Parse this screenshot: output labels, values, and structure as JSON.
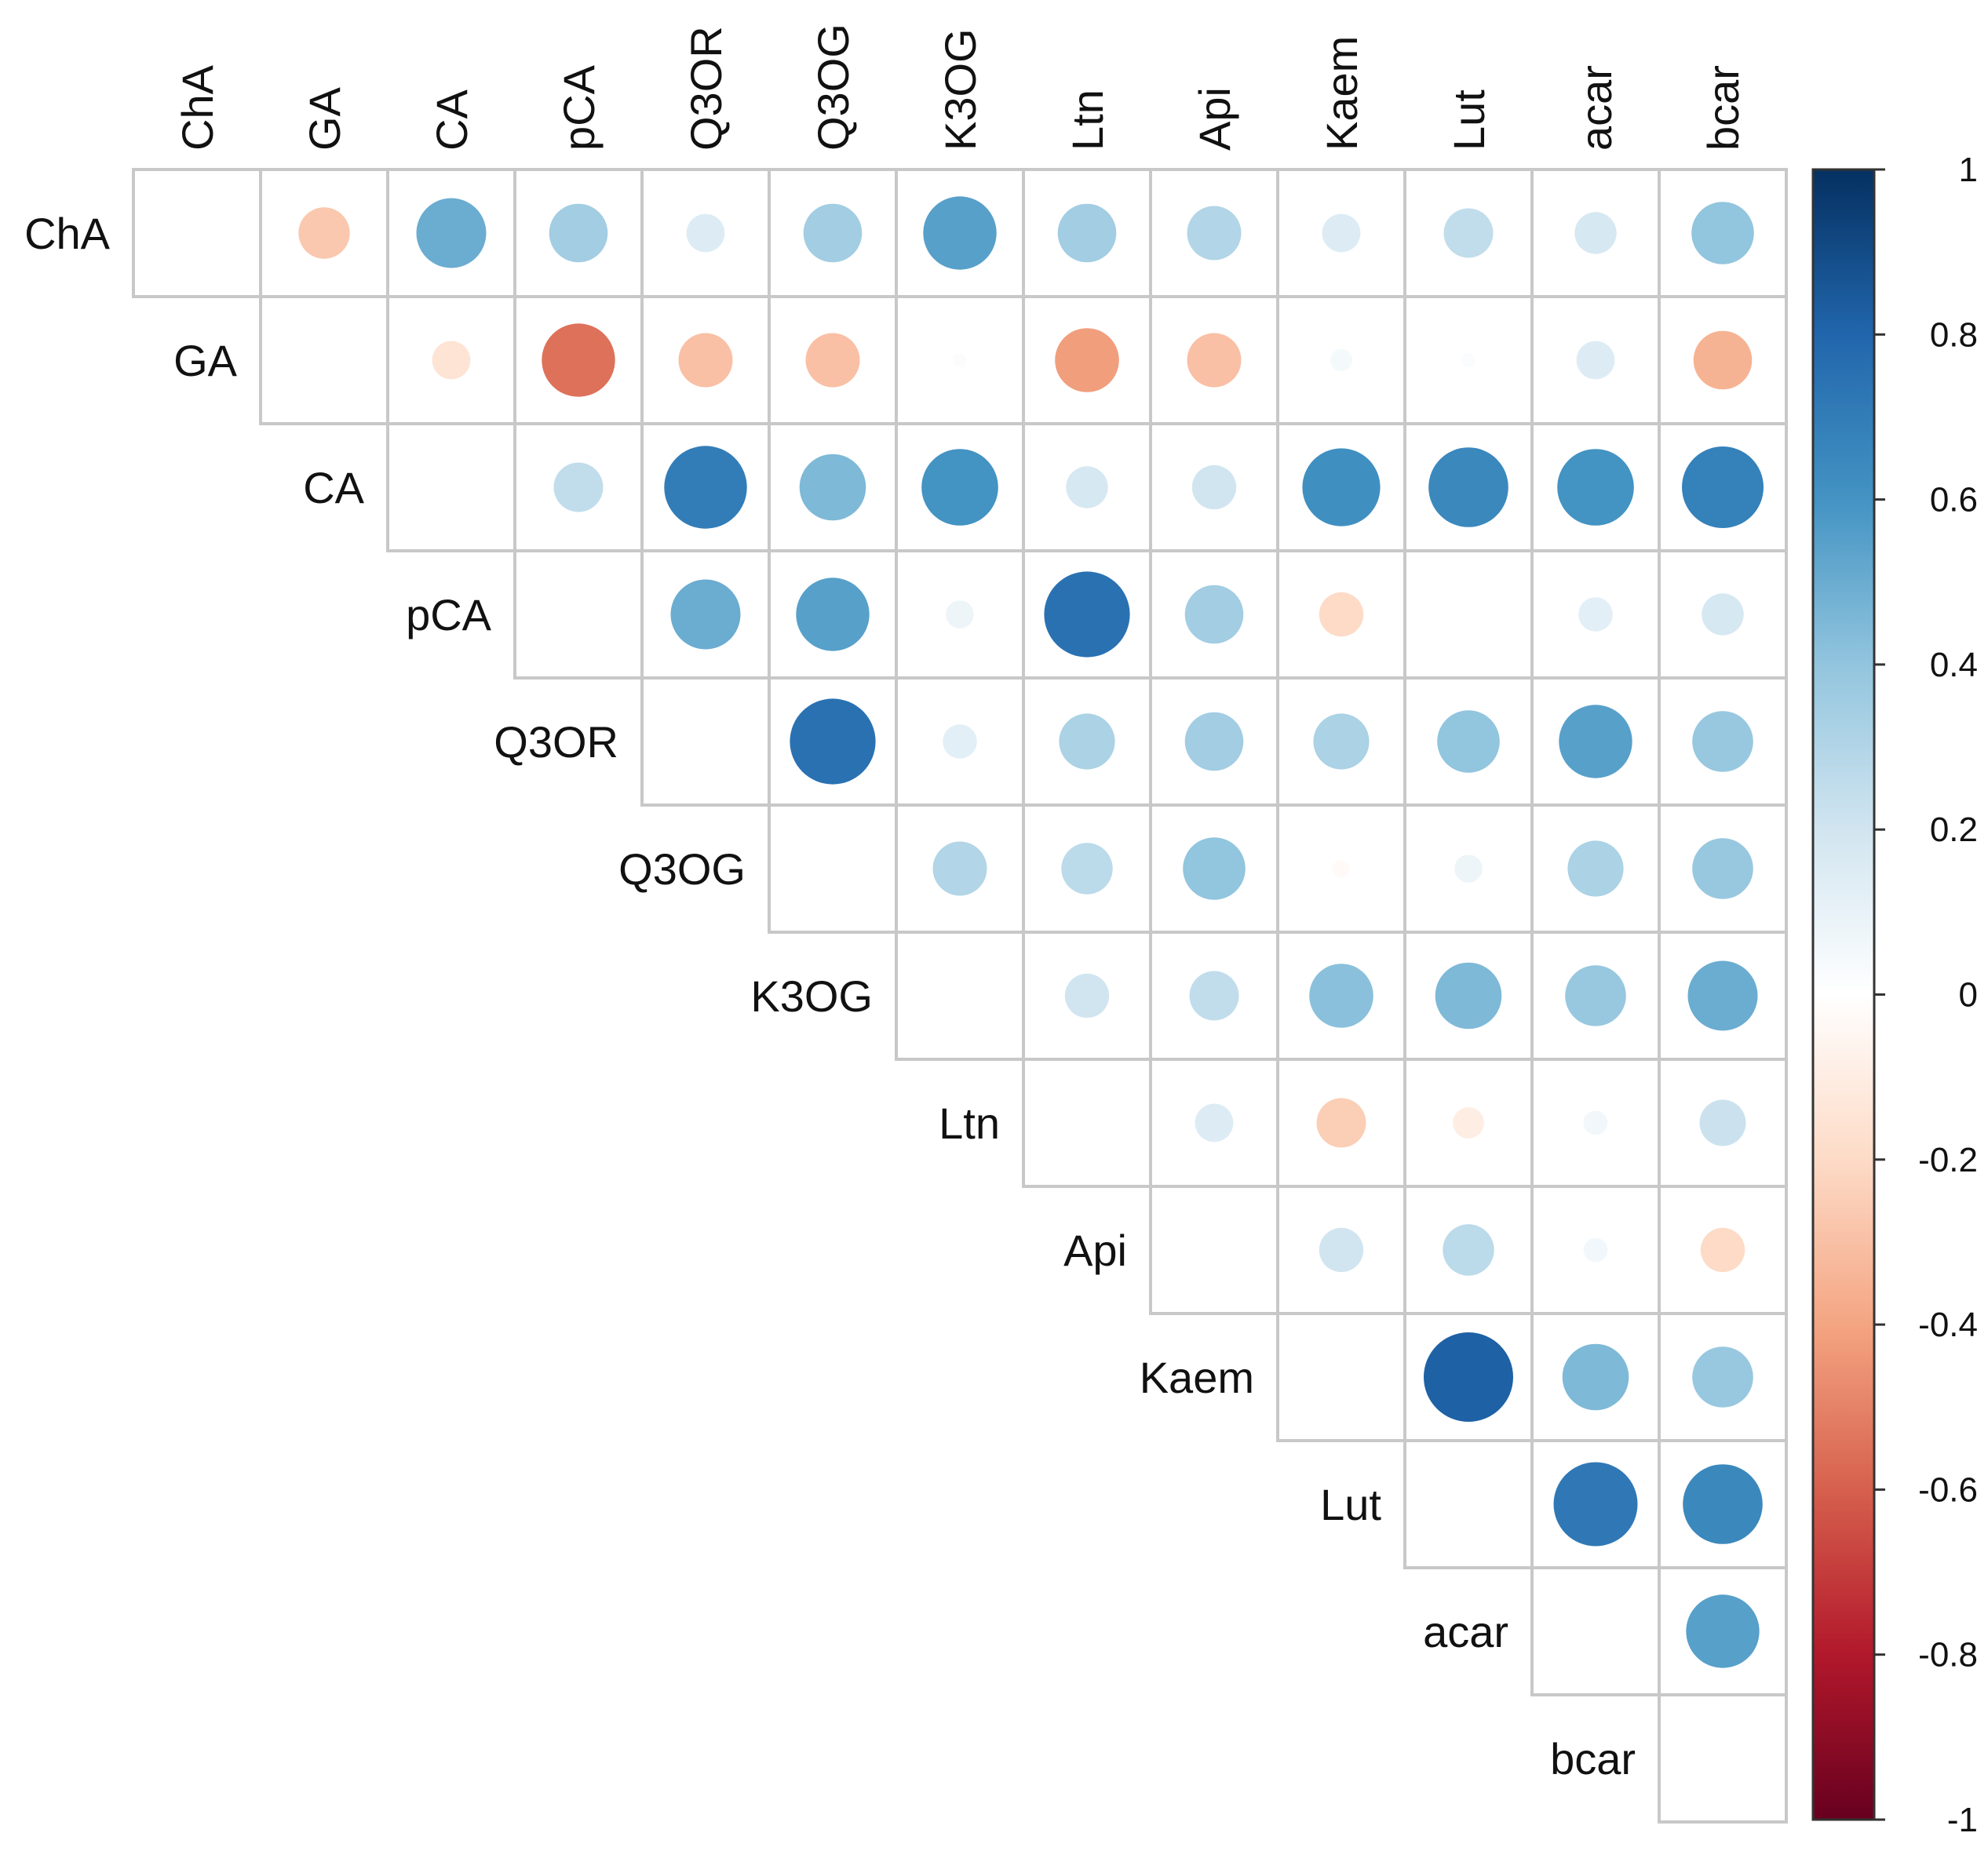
{
  "chart_data": {
    "type": "heatmap",
    "subtype": "correlation-circle-upper-triangle",
    "title": "",
    "variables": [
      "ChA",
      "GA",
      "CA",
      "pCA",
      "Q3OR",
      "Q3OG",
      "K3OG",
      "Ltn",
      "Api",
      "Kaem",
      "Lut",
      "acar",
      "bcar"
    ],
    "matrix": [
      [
        null,
        -0.27,
        0.5,
        0.35,
        0.15,
        0.35,
        0.55,
        0.35,
        0.3,
        0.15,
        0.25,
        0.18,
        0.4
      ],
      [
        null,
        null,
        -0.15,
        -0.55,
        -0.3,
        -0.3,
        0.02,
        -0.42,
        -0.3,
        0.05,
        0.02,
        0.15,
        -0.35
      ],
      [
        null,
        null,
        null,
        0.25,
        0.7,
        0.45,
        0.6,
        0.18,
        0.2,
        0.62,
        0.65,
        0.6,
        0.68
      ],
      [
        null,
        null,
        null,
        null,
        0.5,
        0.55,
        0.08,
        0.75,
        0.35,
        -0.2,
        0.0,
        0.12,
        0.18
      ],
      [
        null,
        null,
        null,
        null,
        null,
        0.75,
        0.12,
        0.32,
        0.35,
        0.32,
        0.4,
        0.55,
        0.38
      ],
      [
        null,
        null,
        null,
        null,
        null,
        null,
        0.3,
        0.27,
        0.4,
        -0.03,
        0.08,
        0.32,
        0.38
      ],
      [
        null,
        null,
        null,
        null,
        null,
        null,
        null,
        0.2,
        0.25,
        0.42,
        0.45,
        0.38,
        0.5
      ],
      [
        null,
        null,
        null,
        null,
        null,
        null,
        null,
        null,
        0.15,
        -0.25,
        -0.1,
        0.06,
        0.22
      ],
      [
        null,
        null,
        null,
        null,
        null,
        null,
        null,
        null,
        null,
        0.2,
        0.27,
        0.06,
        -0.2
      ],
      [
        null,
        null,
        null,
        null,
        null,
        null,
        null,
        null,
        null,
        null,
        0.82,
        0.45,
        0.38
      ],
      [
        null,
        null,
        null,
        null,
        null,
        null,
        null,
        null,
        null,
        null,
        null,
        0.72,
        0.65
      ],
      [
        null,
        null,
        null,
        null,
        null,
        null,
        null,
        null,
        null,
        null,
        null,
        null,
        0.55
      ],
      [
        null,
        null,
        null,
        null,
        null,
        null,
        null,
        null,
        null,
        null,
        null,
        null,
        null
      ]
    ],
    "colorbar": {
      "range": [
        -1,
        1
      ],
      "ticks": [
        "1",
        "0.8",
        "0.6",
        "0.4",
        "0.2",
        "0",
        "-0.2",
        "-0.4",
        "-0.6",
        "-0.8",
        "-1"
      ],
      "colors": [
        "#053061",
        "#2166ac",
        "#4393c3",
        "#92c5de",
        "#d1e5f0",
        "#ffffff",
        "#fddbc7",
        "#f4a582",
        "#d6604d",
        "#b2182b",
        "#67001f"
      ]
    }
  }
}
